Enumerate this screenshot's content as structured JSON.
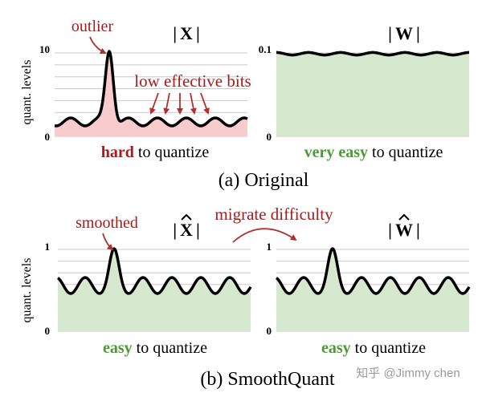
{
  "colors": {
    "red_fill": "#f8cccc",
    "green_fill": "#d6e9cf",
    "dark_red": "#a51c1c",
    "green_text": "#4a9b34",
    "curve": "#000000",
    "gridline": "#c8c8c8",
    "arrow": "#b03030"
  },
  "panel_a": {
    "y_axis_label": "quant. levels",
    "x_panel": {
      "title_bar_left": "|",
      "title_letter": "X",
      "title_bar_right": "|",
      "y_max": "10",
      "y_min": "0",
      "outlier_label": "outlier",
      "low_bits_label": "low effective bits",
      "caption_strong": "hard",
      "caption_rest": "to quantize"
    },
    "w_panel": {
      "title_bar_left": "|",
      "title_letter": "W",
      "title_bar_right": "|",
      "y_max": "0.1",
      "y_min": "0",
      "caption_strong": "very easy",
      "caption_rest": "to quantize"
    },
    "caption": "(a) Original"
  },
  "panel_b": {
    "y_axis_label": "quant. levels",
    "x_panel": {
      "title_bar_left": "|",
      "title_letter": "X",
      "title_bar_right": "|",
      "y_max": "1",
      "y_min": "0",
      "smoothed_label": "smoothed",
      "caption_strong": "easy",
      "caption_rest": "to quantize"
    },
    "migrate_label": "migrate difficulty",
    "w_panel": {
      "title_bar_left": "|",
      "title_letter": "W",
      "title_bar_right": "|",
      "y_max": "1",
      "y_min": "0",
      "caption_strong": "easy",
      "caption_rest": "to quantize"
    },
    "caption": "(b) SmoothQuant"
  },
  "watermark": "知乎 @Jimmy chen"
}
